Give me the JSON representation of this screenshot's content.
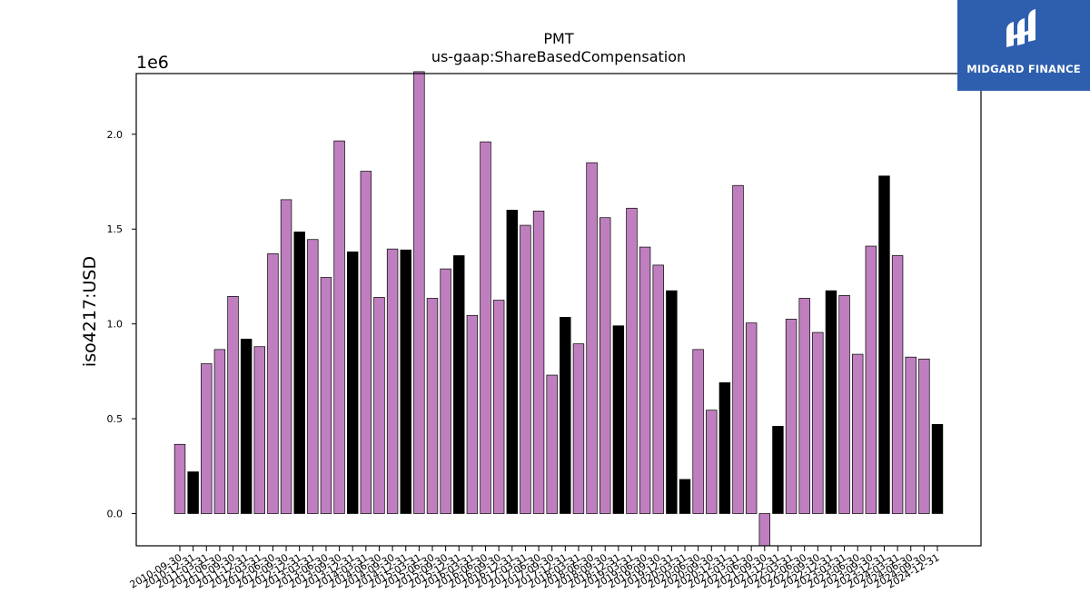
{
  "brand": {
    "name": "MIDGARD FINANCE",
    "bg_color": "#2d5fae"
  },
  "chart_data": {
    "type": "bar",
    "title": "PMT",
    "subtitle": "us-gaap:ShareBasedCompensation",
    "xlabel": "",
    "ylabel": "iso4217:USD",
    "y_offset_label": "1e6",
    "ylim": [
      -0.17,
      2.32
    ],
    "yticks": [
      0.0,
      0.5,
      1.0,
      1.5,
      2.0
    ],
    "ytick_labels": [
      "0.0",
      "0.5",
      "1.0",
      "1.5",
      "2.0"
    ],
    "grid": false,
    "colors": {
      "quarterly": "#bf7fbf",
      "annual": "#000000",
      "edge": "#000000"
    },
    "series": [
      {
        "name": "",
        "categories": [
          "2010-09-30",
          "2010-12-31",
          "2011-03-31",
          "2011-06-30",
          "2011-09-30",
          "2011-12-31",
          "2012-03-31",
          "2012-06-30",
          "2012-09-30",
          "2012-12-31",
          "2013-03-31",
          "2013-06-30",
          "2013-09-30",
          "2013-12-31",
          "2014-03-31",
          "2014-06-30",
          "2014-09-30",
          "2014-12-31",
          "2015-03-31",
          "2015-06-30",
          "2015-09-30",
          "2015-12-31",
          "2016-03-31",
          "2016-06-30",
          "2016-09-30",
          "2016-12-31",
          "2017-03-31",
          "2017-06-30",
          "2017-09-30",
          "2017-12-31",
          "2018-03-31",
          "2018-06-30",
          "2018-09-30",
          "2018-12-31",
          "2019-03-31",
          "2019-06-30",
          "2019-09-30",
          "2019-12-31",
          "2020-03-31",
          "2020-06-30",
          "2020-09-30",
          "2020-12-31",
          "2021-03-31",
          "2021-06-30",
          "2021-09-30",
          "2021-12-31",
          "2022-03-31",
          "2022-06-30",
          "2022-09-30",
          "2022-12-31",
          "2023-03-31",
          "2023-06-30",
          "2023-09-30",
          "2023-12-31",
          "2024-03-31",
          "2024-06-30",
          "2024-09-30",
          "2024-12-31"
        ],
        "values": [
          0.365,
          0.22,
          0.79,
          0.865,
          1.145,
          0.92,
          0.88,
          1.37,
          1.655,
          1.485,
          1.445,
          1.245,
          1.965,
          1.38,
          1.805,
          1.14,
          1.395,
          1.39,
          2.33,
          1.135,
          1.29,
          1.36,
          1.045,
          1.96,
          1.125,
          1.6,
          1.52,
          1.595,
          0.73,
          1.035,
          0.895,
          1.85,
          1.56,
          0.99,
          1.61,
          1.405,
          1.31,
          1.175,
          0.18,
          0.865,
          0.545,
          0.69,
          1.73,
          1.005,
          -0.17,
          0.46,
          1.025,
          1.135,
          0.955,
          1.175,
          1.15,
          0.84,
          1.41,
          1.78,
          1.36,
          0.825,
          0.815,
          0.47
        ],
        "kinds": [
          "Q",
          "A",
          "Q",
          "Q",
          "Q",
          "A",
          "Q",
          "Q",
          "Q",
          "A",
          "Q",
          "Q",
          "Q",
          "A",
          "Q",
          "Q",
          "Q",
          "A",
          "Q",
          "Q",
          "Q",
          "A",
          "Q",
          "Q",
          "Q",
          "A",
          "Q",
          "Q",
          "Q",
          "A",
          "Q",
          "Q",
          "Q",
          "A",
          "Q",
          "Q",
          "Q",
          "A",
          "A",
          "Q",
          "Q",
          "A",
          "Q",
          "Q",
          "Q",
          "A",
          "Q",
          "Q",
          "Q",
          "A",
          "Q",
          "Q",
          "Q",
          "A",
          "Q",
          "Q",
          "Q",
          "A"
        ]
      }
    ]
  }
}
